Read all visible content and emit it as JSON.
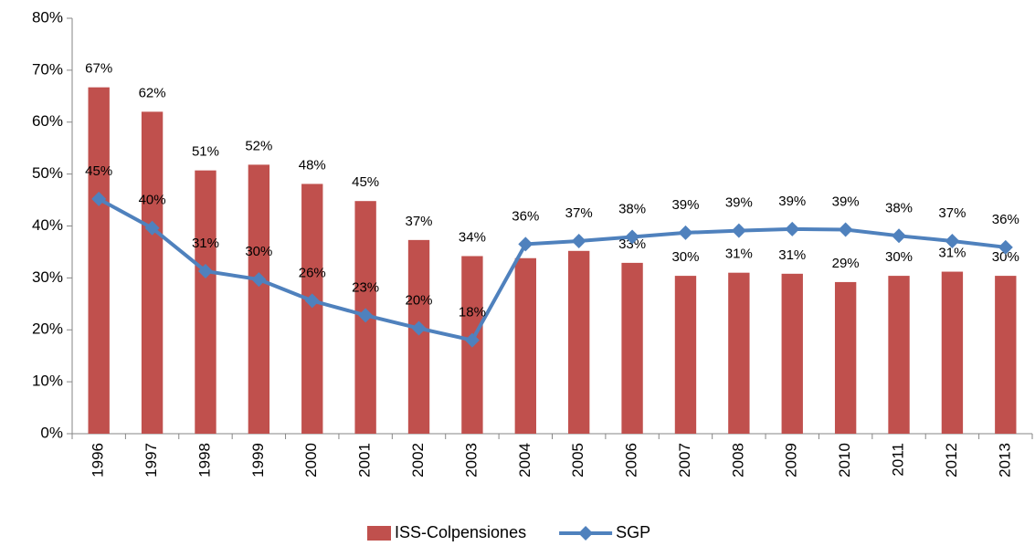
{
  "chart_data": {
    "type": "bar_line",
    "categories": [
      "1996",
      "1997",
      "1998",
      "1999",
      "2000",
      "2001",
      "2002",
      "2003",
      "2004",
      "2005",
      "2006",
      "2007",
      "2008",
      "2009",
      "2010",
      "2011",
      "2012",
      "2013"
    ],
    "series": [
      {
        "name": "ISS-Colpensiones",
        "type": "bar",
        "color": "#c0504d",
        "values": [
          66.7,
          62.0,
          50.7,
          51.8,
          48.1,
          44.8,
          37.3,
          34.2,
          33.8,
          35.2,
          32.9,
          30.4,
          31.0,
          30.8,
          29.2,
          30.4,
          31.2,
          30.4
        ],
        "value_labels": [
          "67%",
          "62%",
          "51%",
          "52%",
          "48%",
          "45%",
          "37%",
          "34%",
          null,
          null,
          "33%",
          "30%",
          "31%",
          "31%",
          "29%",
          "30%",
          "31%",
          "30%"
        ]
      },
      {
        "name": "SGP",
        "type": "line",
        "color": "#4f81bd",
        "values": [
          45.2,
          39.6,
          31.3,
          29.7,
          25.6,
          22.8,
          20.3,
          18.0,
          36.5,
          37.1,
          37.9,
          38.7,
          39.1,
          39.4,
          39.3,
          38.1,
          37.1,
          35.9
        ],
        "value_labels": [
          "45%",
          "40%",
          "31%",
          "30%",
          "26%",
          "23%",
          "20%",
          "18%",
          "36%",
          "37%",
          "38%",
          "39%",
          "39%",
          "39%",
          "39%",
          "38%",
          "37%",
          "36%"
        ]
      }
    ],
    "ylim": [
      0,
      80
    ],
    "yticks": [
      {
        "value": 0,
        "label": "0%"
      },
      {
        "value": 10,
        "label": "10%"
      },
      {
        "value": 20,
        "label": "20%"
      },
      {
        "value": 30,
        "label": "30%"
      },
      {
        "value": 40,
        "label": "40%"
      },
      {
        "value": 50,
        "label": "50%"
      },
      {
        "value": 60,
        "label": "60%"
      },
      {
        "value": 70,
        "label": "70%"
      },
      {
        "value": 80,
        "label": "80%"
      }
    ],
    "legend": "bottom"
  }
}
